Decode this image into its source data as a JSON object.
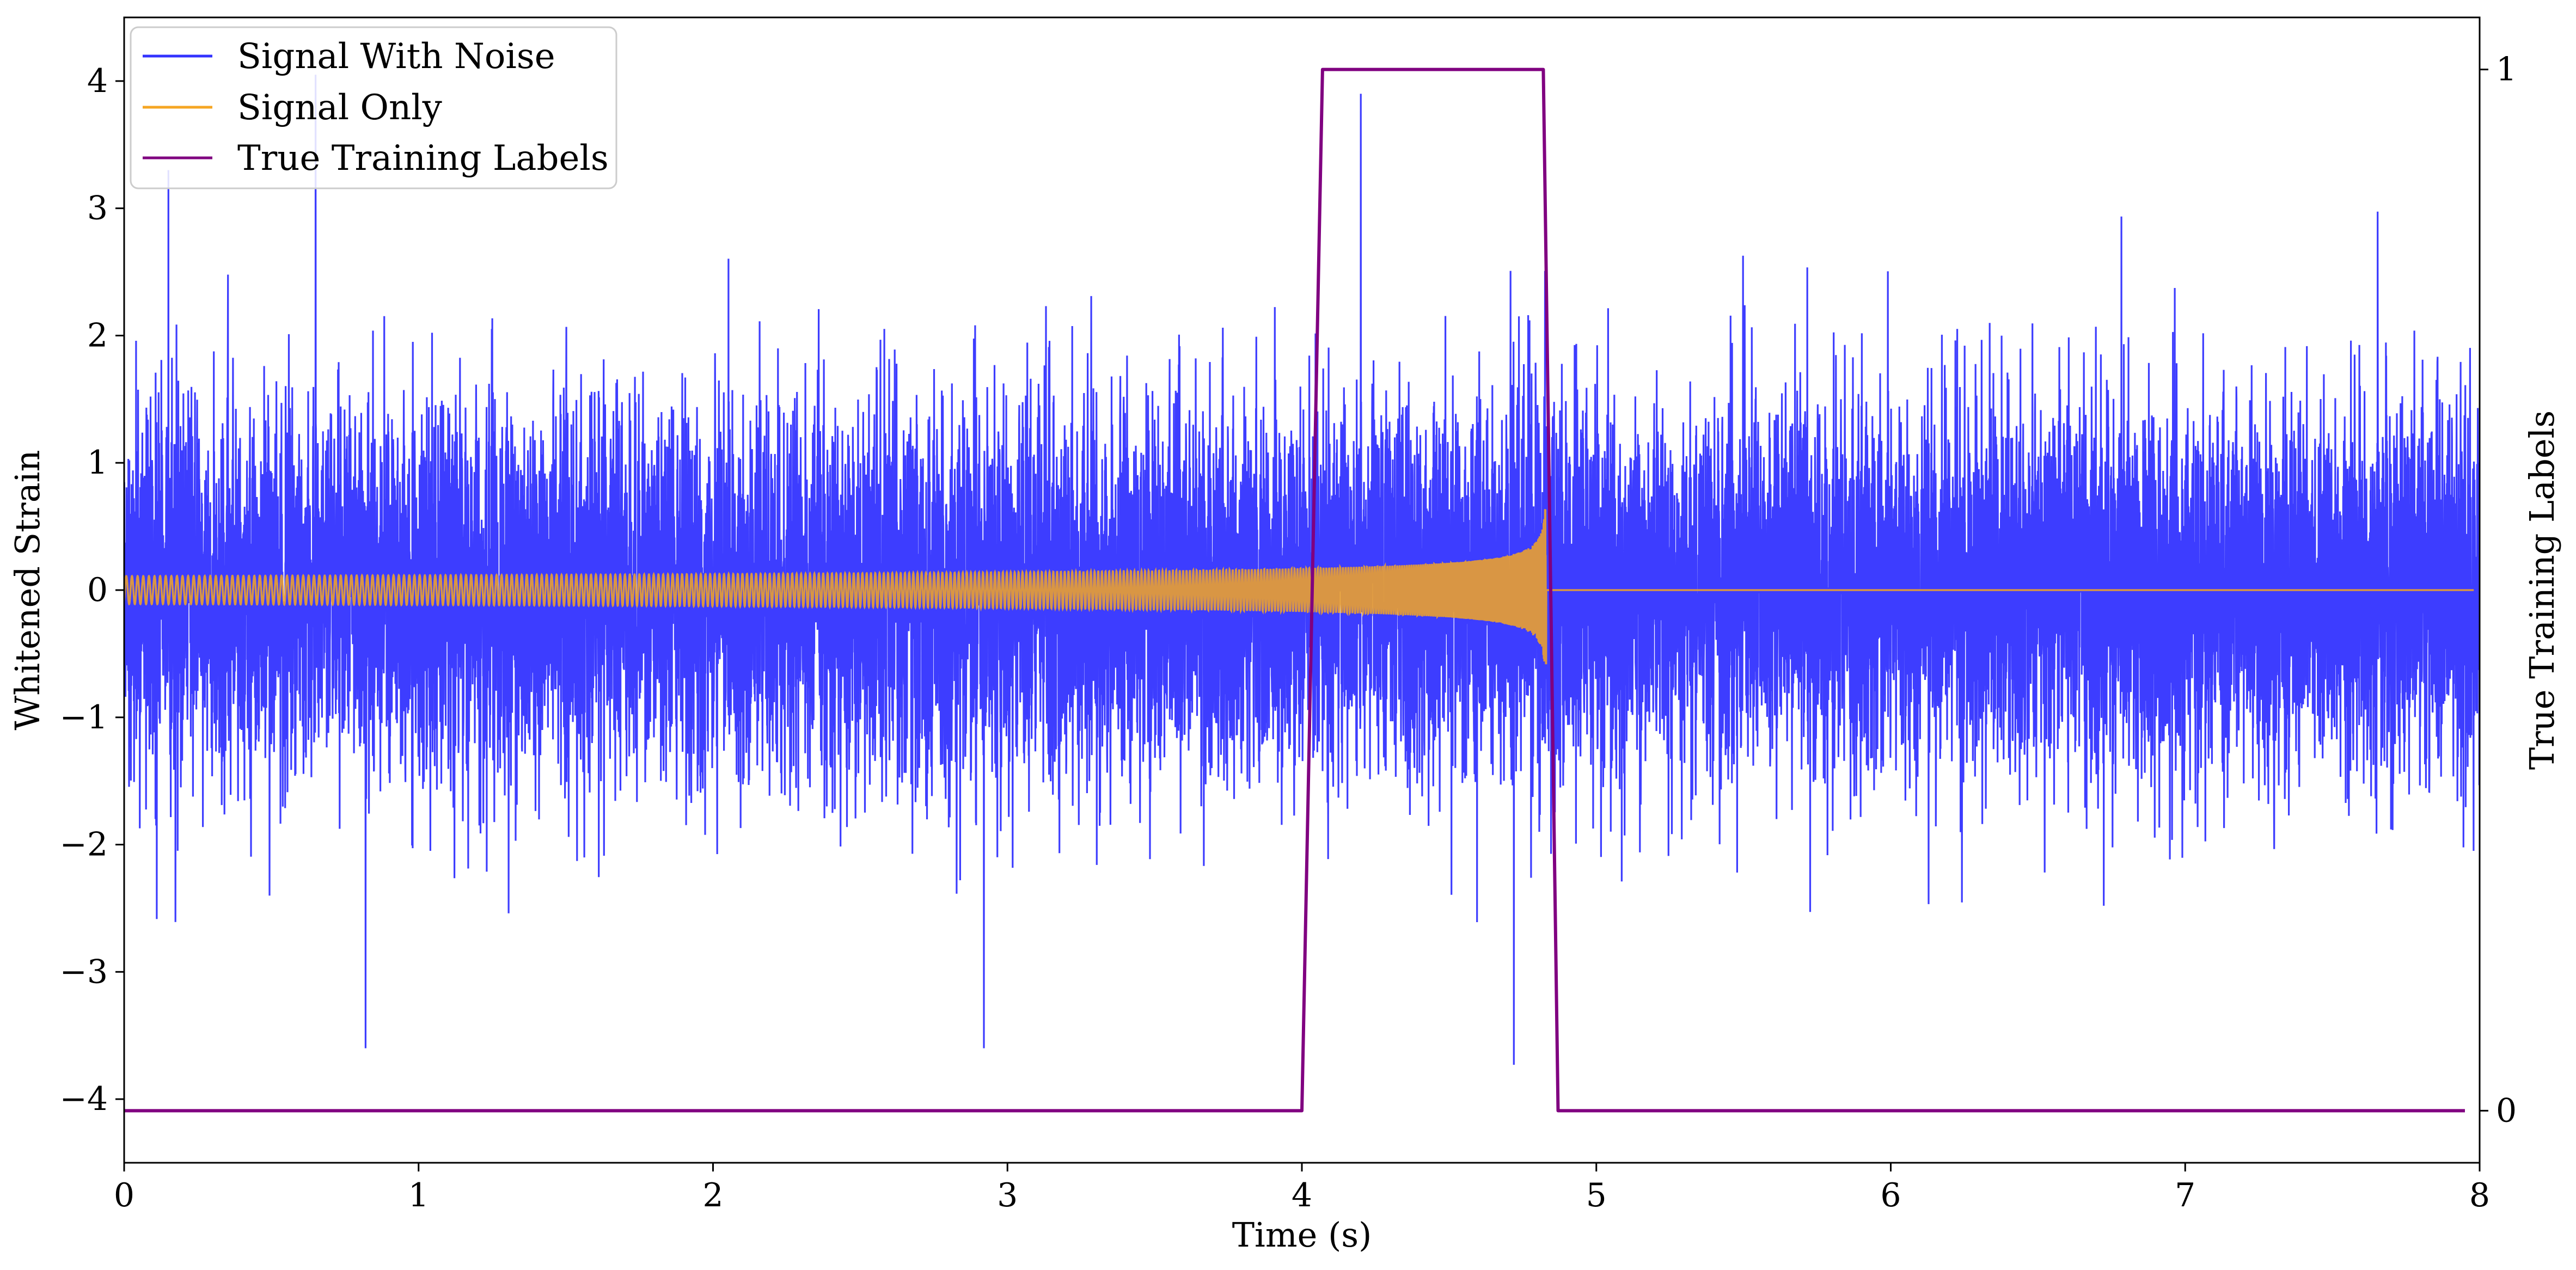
{
  "chart_data": {
    "type": "line",
    "xlabel": "Time (s)",
    "ylabel": "Whitened Strain",
    "y2label": "True Training Labels",
    "xlim": [
      0,
      8
    ],
    "ylim": [
      -4.5,
      4.5
    ],
    "y2lim": [
      -0.05,
      1.05
    ],
    "x_ticks": [
      {
        "value": 0,
        "label": "0"
      },
      {
        "value": 1,
        "label": "1"
      },
      {
        "value": 2,
        "label": "2"
      },
      {
        "value": 3,
        "label": "3"
      },
      {
        "value": 4,
        "label": "4"
      },
      {
        "value": 5,
        "label": "5"
      },
      {
        "value": 6,
        "label": "6"
      },
      {
        "value": 7,
        "label": "7"
      },
      {
        "value": 8,
        "label": "8"
      }
    ],
    "y_ticks": [
      {
        "value": 4,
        "label": "4"
      },
      {
        "value": 3,
        "label": "3"
      },
      {
        "value": 2,
        "label": "2"
      },
      {
        "value": 1,
        "label": "1"
      },
      {
        "value": 0,
        "label": "0"
      },
      {
        "value": -1,
        "label": "−1"
      },
      {
        "value": -2,
        "label": "−2"
      },
      {
        "value": -3,
        "label": "−3"
      },
      {
        "value": -4,
        "label": "−4"
      }
    ],
    "y2_ticks": [
      {
        "value": 1,
        "label": "1"
      },
      {
        "value": 0,
        "label": "0"
      }
    ],
    "grid": false,
    "legend_position": "upper-left",
    "series": [
      {
        "name": "Signal With Noise",
        "color": "#3333ff",
        "axis": "left",
        "description_values": {
          "x_range": [
            0,
            8
          ],
          "typical_amplitude": 1.0,
          "max_peak": 4.05,
          "min_peak": -3.73,
          "notable_peaks": [
            [
              0.15,
              3.3
            ],
            [
              0.65,
              4.05
            ],
            [
              4.2,
              3.9
            ],
            [
              0.82,
              -3.6
            ],
            [
              4.72,
              -3.73
            ],
            [
              2.92,
              -3.6
            ]
          ]
        }
      },
      {
        "name": "Signal Only",
        "color": "#f5a623",
        "axis": "left",
        "description_values": {
          "x_range": [
            0,
            7.98
          ],
          "start_amplitude": 0.07,
          "amplitude_at_4s": 0.2,
          "peak_time": 4.83,
          "peak_amplitude": 0.65,
          "post_merger_value": 0
        }
      },
      {
        "name": "True Training Labels",
        "color": "#800080",
        "axis": "right",
        "x": [
          0,
          4.0,
          4.07,
          4.82,
          4.87,
          7.95
        ],
        "values": [
          0,
          0,
          1,
          1,
          0,
          0
        ]
      }
    ]
  }
}
